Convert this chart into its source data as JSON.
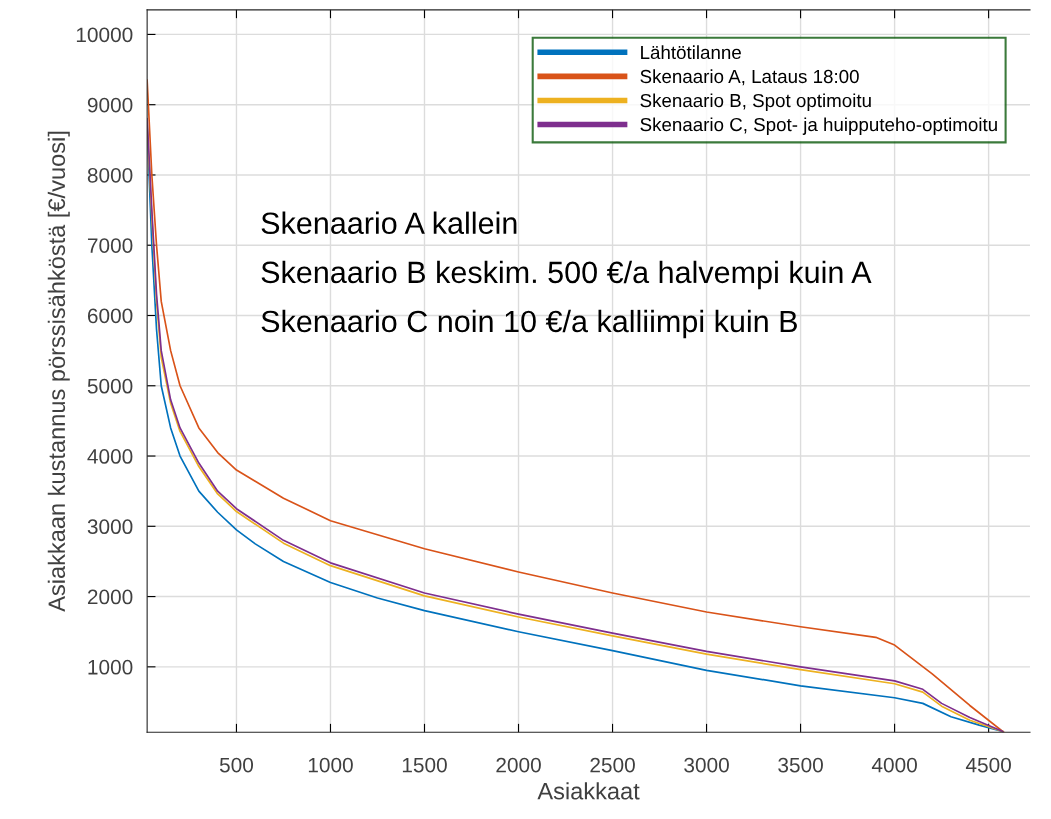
{
  "chart_data": {
    "type": "line",
    "xlabel": "Asiakkaat",
    "ylabel": "Asiakkaan kustannus pörssisähköstä [€/vuosi]",
    "xlim": [
      25,
      4720
    ],
    "ylim": [
      70,
      10350
    ],
    "xticks": [
      500,
      1000,
      1500,
      2000,
      2500,
      3000,
      3500,
      4000,
      4500
    ],
    "yticks": [
      1000,
      2000,
      3000,
      4000,
      5000,
      6000,
      7000,
      8000,
      9000,
      10000
    ],
    "grid": true,
    "legend": "top right",
    "marker": "none",
    "line_style": "solid",
    "annotations": [
      "Skenaario A kallein",
      "Skenaario B keskim. 500 €/a halvempi kuin A",
      "Skenaario C noin 10 €/a kalliimpi kuin B"
    ],
    "series": [
      {
        "name": "Lähtötilanne",
        "color": "#0072bd",
        "x": [
          25,
          50,
          75,
          100,
          150,
          200,
          300,
          400,
          500,
          600,
          750,
          1000,
          1250,
          1500,
          2000,
          2500,
          3000,
          3500,
          4000,
          4150,
          4300,
          4450,
          4575
        ],
        "values": [
          8700,
          7000,
          5800,
          5000,
          4400,
          4000,
          3500,
          3200,
          2950,
          2750,
          2500,
          2200,
          1980,
          1800,
          1500,
          1230,
          950,
          730,
          560,
          480,
          290,
          170,
          80
        ]
      },
      {
        "name": "Skenaario A, Lataus 18:00",
        "color": "#d95319",
        "x": [
          25,
          50,
          75,
          100,
          150,
          200,
          300,
          400,
          500,
          750,
          1000,
          1500,
          2000,
          2500,
          3000,
          3500,
          3900,
          4000,
          4200,
          4400,
          4580
        ],
        "values": [
          9350,
          8000,
          7000,
          6200,
          5500,
          5000,
          4400,
          4050,
          3800,
          3400,
          3080,
          2680,
          2350,
          2050,
          1780,
          1570,
          1420,
          1310,
          900,
          450,
          70
        ]
      },
      {
        "name": "Skenaario B, Spot optimoitu",
        "color": "#edb120",
        "x": [
          25,
          50,
          75,
          100,
          150,
          200,
          300,
          400,
          500,
          750,
          1000,
          1500,
          2000,
          2500,
          3000,
          3500,
          4000,
          4150,
          4250,
          4400,
          4575
        ],
        "values": [
          8750,
          7400,
          6200,
          5400,
          4750,
          4350,
          3850,
          3460,
          3210,
          2760,
          2440,
          2010,
          1710,
          1440,
          1180,
          960,
          760,
          640,
          440,
          240,
          80
        ]
      },
      {
        "name": "Skenaario C, Spot- ja huipputeho-optimoitu",
        "color": "#7e2f8e",
        "x": [
          25,
          50,
          75,
          100,
          150,
          200,
          300,
          400,
          500,
          750,
          1000,
          1500,
          2000,
          2500,
          3000,
          3500,
          4000,
          4150,
          4250,
          4400,
          4575
        ],
        "values": [
          8800,
          7500,
          6300,
          5500,
          4800,
          4400,
          3900,
          3500,
          3250,
          2800,
          2480,
          2050,
          1750,
          1480,
          1220,
          1000,
          800,
          680,
          480,
          280,
          80
        ]
      }
    ]
  }
}
